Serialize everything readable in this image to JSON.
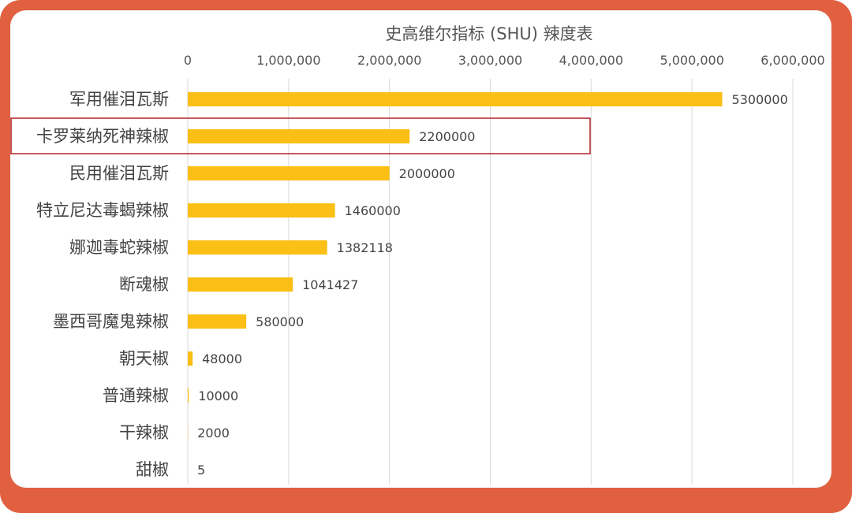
{
  "colors": {
    "frame": "#e06040",
    "bar": "#fbbf15",
    "grid": "#d9d9d9",
    "highlight_border": "#b22222"
  },
  "chart_data": {
    "type": "bar",
    "orientation": "horizontal",
    "title": "史高维尔指标 (SHU) 辣度表",
    "categories": [
      "军用催泪瓦斯",
      "卡罗莱纳死神辣椒",
      "民用催泪瓦斯",
      "特立尼达毒蝎辣椒",
      "娜迦毒蛇辣椒",
      "断魂椒",
      "墨西哥魔鬼辣椒",
      "朝天椒",
      "普通辣椒",
      "干辣椒",
      "甜椒"
    ],
    "values": [
      5300000,
      2200000,
      2000000,
      1460000,
      1382118,
      1041427,
      580000,
      48000,
      10000,
      2000,
      5
    ],
    "value_labels": [
      "5300000",
      "2200000",
      "2000000",
      "1460000",
      "1382118",
      "1041427",
      "580000",
      "48000",
      "10000",
      "2000",
      "5"
    ],
    "xlim": [
      0,
      6000000
    ],
    "ticks": [
      0,
      1000000,
      2000000,
      3000000,
      4000000,
      5000000,
      6000000
    ],
    "tick_labels": [
      "0",
      "1,000,000",
      "2,000,000",
      "3,000,000",
      "4,000,000",
      "5,000,000",
      "6,000,000"
    ],
    "x_axis_position": "top",
    "grid": true,
    "legend": "none",
    "highlighted_category": "卡罗莱纳死神辣椒"
  }
}
